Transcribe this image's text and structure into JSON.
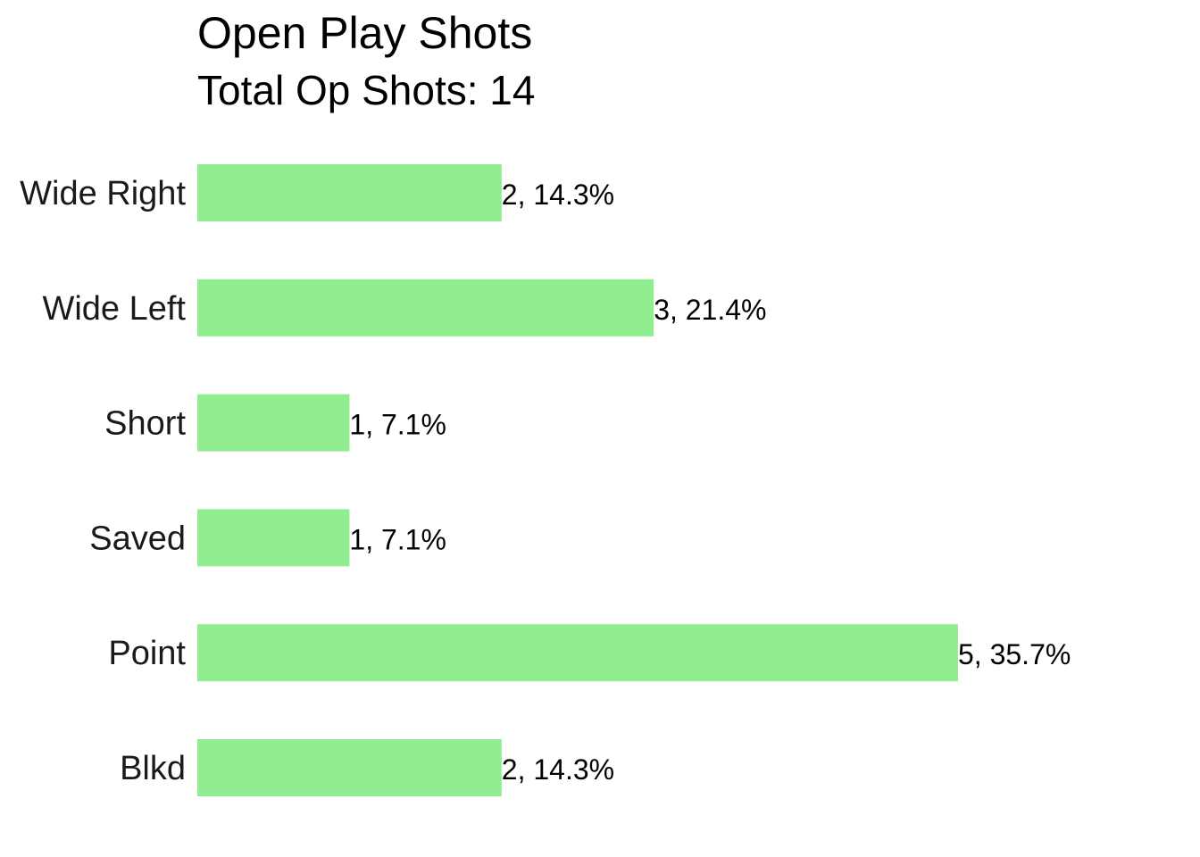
{
  "chart_data": {
    "type": "bar",
    "orientation": "horizontal",
    "title": "Open Play Shots",
    "subtitle": "Total Op Shots: 14",
    "categories": [
      "Wide Right",
      "Wide Left",
      "Short",
      "Saved",
      "Point",
      "Blkd"
    ],
    "values": [
      2,
      3,
      1,
      1,
      5,
      2
    ],
    "data_labels": [
      "2, 14.3%",
      "3, 21.4%",
      "1, 7.1%",
      "1, 7.1%",
      "5, 35.7%",
      "2, 14.3%"
    ],
    "xlabel": "",
    "ylabel": "",
    "xlim": [
      0,
      5
    ],
    "grid": false,
    "legend": "none",
    "bar_color": "#90EE90"
  }
}
